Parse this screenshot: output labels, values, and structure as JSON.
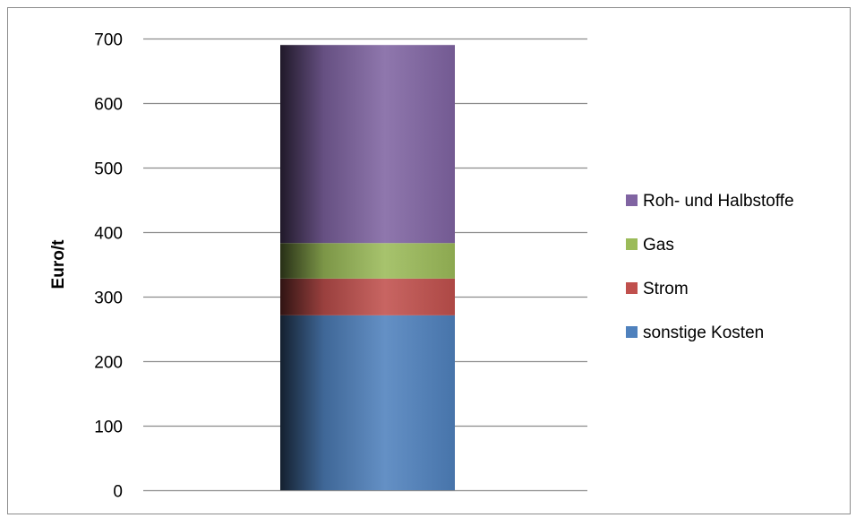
{
  "chart_data": {
    "type": "bar",
    "stacked": true,
    "categories": [
      ""
    ],
    "ylabel": "Euro/t",
    "ylim": [
      0,
      700
    ],
    "yticks": [
      0,
      100,
      200,
      300,
      400,
      500,
      600,
      700
    ],
    "grid": true,
    "legend_position": "right",
    "series": [
      {
        "name": "sonstige Kosten",
        "values": [
          271
        ],
        "color": "#4f81bd"
      },
      {
        "name": "Strom",
        "values": [
          57
        ],
        "color": "#c0504d"
      },
      {
        "name": "Gas",
        "values": [
          55
        ],
        "color": "#9bbb59"
      },
      {
        "name": "Roh- und Halbstoffe",
        "values": [
          307
        ],
        "color": "#8064a2"
      }
    ],
    "legend_order": [
      "Roh- und Halbstoffe",
      "Gas",
      "Strom",
      "sonstige Kosten"
    ]
  }
}
